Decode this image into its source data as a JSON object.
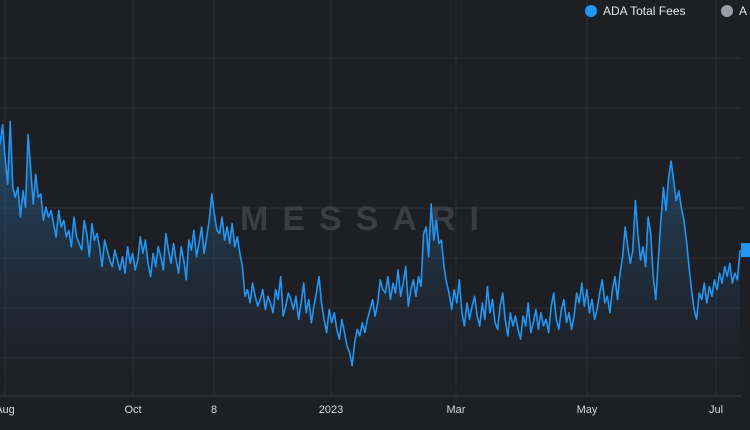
{
  "colors": {
    "background": "#1e1f24",
    "line": "#2196f3",
    "grid": "#2c2f36",
    "second_series_marker": "#9aa0aa"
  },
  "watermark": "MESSARI",
  "chart_data": {
    "type": "area",
    "title": "",
    "xlabel": "",
    "ylabel": "",
    "grid": true,
    "legend_position": "top-right",
    "legend": [
      "ADA Total Fees",
      "A"
    ],
    "x_ticks": [
      "Aug",
      "Oct",
      "8",
      "2023",
      "Mar",
      "May",
      "Jul"
    ],
    "y_range": [
      0,
      100
    ],
    "series": [
      {
        "name": "ADA Total Fees",
        "x_range": [
          "2022-07-22",
          "2023-07-17"
        ],
        "values": [
          75,
          81,
          71,
          63,
          82,
          62,
          59,
          62,
          53,
          61,
          56,
          78,
          68,
          57,
          66,
          59,
          60,
          52,
          56,
          53,
          55,
          51,
          47,
          55,
          50,
          52,
          47,
          49,
          44,
          53,
          47,
          45,
          43,
          52,
          48,
          41,
          51,
          46,
          48,
          44,
          38,
          46,
          43,
          40,
          38,
          43,
          40,
          37,
          41,
          36,
          44,
          39,
          42,
          37,
          40,
          47,
          42,
          46,
          39,
          35,
          42,
          38,
          44,
          41,
          37,
          48,
          43,
          39,
          45,
          40,
          36,
          44,
          40,
          34,
          46,
          43,
          49,
          41,
          45,
          50,
          42,
          47,
          52,
          60,
          54,
          49,
          48,
          53,
          46,
          50,
          45,
          51,
          44,
          47,
          42,
          38,
          29,
          31,
          27,
          33,
          29,
          26,
          28,
          31,
          25,
          29,
          27,
          24,
          31,
          28,
          35,
          23,
          26,
          30,
          28,
          25,
          29,
          22,
          27,
          33,
          24,
          28,
          21,
          26,
          30,
          35,
          27,
          22,
          18,
          25,
          21,
          24,
          19,
          16,
          22,
          18,
          14,
          12,
          8,
          15,
          19,
          17,
          21,
          18,
          22,
          25,
          28,
          23,
          27,
          34,
          31,
          30,
          35,
          28,
          33,
          30,
          37,
          29,
          33,
          38,
          26,
          31,
          34,
          29,
          35,
          32,
          48,
          50,
          41,
          57,
          46,
          52,
          45,
          46,
          38,
          33,
          30,
          25,
          31,
          27,
          34,
          24,
          20,
          27,
          22,
          26,
          29,
          23,
          20,
          27,
          22,
          32,
          24,
          28,
          21,
          19,
          26,
          30,
          22,
          17,
          24,
          20,
          23,
          19,
          16,
          23,
          20,
          27,
          18,
          21,
          25,
          19,
          24,
          20,
          22,
          18,
          26,
          30,
          22,
          19,
          25,
          28,
          21,
          24,
          19,
          23,
          30,
          27,
          33,
          26,
          31,
          24,
          28,
          22,
          25,
          30,
          34,
          27,
          29,
          24,
          31,
          35,
          28,
          36,
          41,
          50,
          44,
          39,
          43,
          58,
          48,
          40,
          44,
          38,
          53,
          48,
          35,
          28,
          40,
          52,
          62,
          55,
          65,
          70,
          64,
          58,
          61,
          56,
          52,
          46,
          38,
          31,
          25,
          22,
          30,
          28,
          33,
          27,
          32,
          29,
          34,
          31,
          36,
          33,
          38,
          35,
          39,
          33,
          36,
          34,
          43
        ]
      },
      {
        "name": "A"
      }
    ]
  }
}
